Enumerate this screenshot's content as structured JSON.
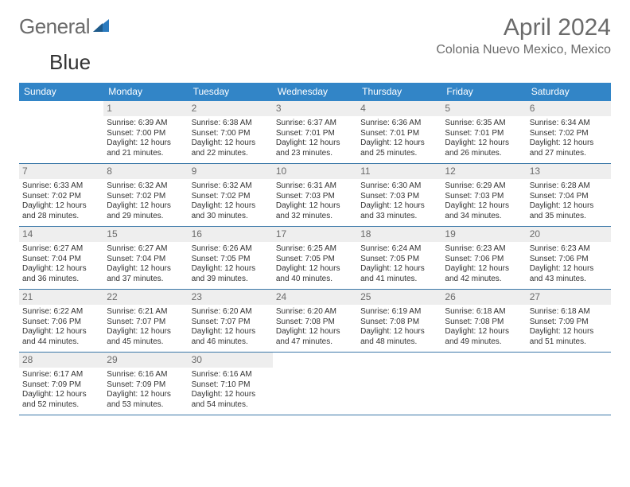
{
  "logo": {
    "text1": "General",
    "text2": "Blue",
    "icon_color": "#2b7bbf"
  },
  "title": {
    "month": "April 2024",
    "location": "Colonia Nuevo Mexico, Mexico"
  },
  "colors": {
    "header_bg": "#3285c7",
    "header_text": "#ffffff",
    "daynum_bg": "#eeeeee",
    "daynum_text": "#6b6b6b",
    "border": "#3b78a8",
    "body_text": "#333333"
  },
  "weekdays": [
    "Sunday",
    "Monday",
    "Tuesday",
    "Wednesday",
    "Thursday",
    "Friday",
    "Saturday"
  ],
  "weeks": [
    [
      {
        "empty": true
      },
      {
        "n": "1",
        "sunrise": "Sunrise: 6:39 AM",
        "sunset": "Sunset: 7:00 PM",
        "daylight": "Daylight: 12 hours and 21 minutes."
      },
      {
        "n": "2",
        "sunrise": "Sunrise: 6:38 AM",
        "sunset": "Sunset: 7:00 PM",
        "daylight": "Daylight: 12 hours and 22 minutes."
      },
      {
        "n": "3",
        "sunrise": "Sunrise: 6:37 AM",
        "sunset": "Sunset: 7:01 PM",
        "daylight": "Daylight: 12 hours and 23 minutes."
      },
      {
        "n": "4",
        "sunrise": "Sunrise: 6:36 AM",
        "sunset": "Sunset: 7:01 PM",
        "daylight": "Daylight: 12 hours and 25 minutes."
      },
      {
        "n": "5",
        "sunrise": "Sunrise: 6:35 AM",
        "sunset": "Sunset: 7:01 PM",
        "daylight": "Daylight: 12 hours and 26 minutes."
      },
      {
        "n": "6",
        "sunrise": "Sunrise: 6:34 AM",
        "sunset": "Sunset: 7:02 PM",
        "daylight": "Daylight: 12 hours and 27 minutes."
      }
    ],
    [
      {
        "n": "7",
        "sunrise": "Sunrise: 6:33 AM",
        "sunset": "Sunset: 7:02 PM",
        "daylight": "Daylight: 12 hours and 28 minutes."
      },
      {
        "n": "8",
        "sunrise": "Sunrise: 6:32 AM",
        "sunset": "Sunset: 7:02 PM",
        "daylight": "Daylight: 12 hours and 29 minutes."
      },
      {
        "n": "9",
        "sunrise": "Sunrise: 6:32 AM",
        "sunset": "Sunset: 7:02 PM",
        "daylight": "Daylight: 12 hours and 30 minutes."
      },
      {
        "n": "10",
        "sunrise": "Sunrise: 6:31 AM",
        "sunset": "Sunset: 7:03 PM",
        "daylight": "Daylight: 12 hours and 32 minutes."
      },
      {
        "n": "11",
        "sunrise": "Sunrise: 6:30 AM",
        "sunset": "Sunset: 7:03 PM",
        "daylight": "Daylight: 12 hours and 33 minutes."
      },
      {
        "n": "12",
        "sunrise": "Sunrise: 6:29 AM",
        "sunset": "Sunset: 7:03 PM",
        "daylight": "Daylight: 12 hours and 34 minutes."
      },
      {
        "n": "13",
        "sunrise": "Sunrise: 6:28 AM",
        "sunset": "Sunset: 7:04 PM",
        "daylight": "Daylight: 12 hours and 35 minutes."
      }
    ],
    [
      {
        "n": "14",
        "sunrise": "Sunrise: 6:27 AM",
        "sunset": "Sunset: 7:04 PM",
        "daylight": "Daylight: 12 hours and 36 minutes."
      },
      {
        "n": "15",
        "sunrise": "Sunrise: 6:27 AM",
        "sunset": "Sunset: 7:04 PM",
        "daylight": "Daylight: 12 hours and 37 minutes."
      },
      {
        "n": "16",
        "sunrise": "Sunrise: 6:26 AM",
        "sunset": "Sunset: 7:05 PM",
        "daylight": "Daylight: 12 hours and 39 minutes."
      },
      {
        "n": "17",
        "sunrise": "Sunrise: 6:25 AM",
        "sunset": "Sunset: 7:05 PM",
        "daylight": "Daylight: 12 hours and 40 minutes."
      },
      {
        "n": "18",
        "sunrise": "Sunrise: 6:24 AM",
        "sunset": "Sunset: 7:05 PM",
        "daylight": "Daylight: 12 hours and 41 minutes."
      },
      {
        "n": "19",
        "sunrise": "Sunrise: 6:23 AM",
        "sunset": "Sunset: 7:06 PM",
        "daylight": "Daylight: 12 hours and 42 minutes."
      },
      {
        "n": "20",
        "sunrise": "Sunrise: 6:23 AM",
        "sunset": "Sunset: 7:06 PM",
        "daylight": "Daylight: 12 hours and 43 minutes."
      }
    ],
    [
      {
        "n": "21",
        "sunrise": "Sunrise: 6:22 AM",
        "sunset": "Sunset: 7:06 PM",
        "daylight": "Daylight: 12 hours and 44 minutes."
      },
      {
        "n": "22",
        "sunrise": "Sunrise: 6:21 AM",
        "sunset": "Sunset: 7:07 PM",
        "daylight": "Daylight: 12 hours and 45 minutes."
      },
      {
        "n": "23",
        "sunrise": "Sunrise: 6:20 AM",
        "sunset": "Sunset: 7:07 PM",
        "daylight": "Daylight: 12 hours and 46 minutes."
      },
      {
        "n": "24",
        "sunrise": "Sunrise: 6:20 AM",
        "sunset": "Sunset: 7:08 PM",
        "daylight": "Daylight: 12 hours and 47 minutes."
      },
      {
        "n": "25",
        "sunrise": "Sunrise: 6:19 AM",
        "sunset": "Sunset: 7:08 PM",
        "daylight": "Daylight: 12 hours and 48 minutes."
      },
      {
        "n": "26",
        "sunrise": "Sunrise: 6:18 AM",
        "sunset": "Sunset: 7:08 PM",
        "daylight": "Daylight: 12 hours and 49 minutes."
      },
      {
        "n": "27",
        "sunrise": "Sunrise: 6:18 AM",
        "sunset": "Sunset: 7:09 PM",
        "daylight": "Daylight: 12 hours and 51 minutes."
      }
    ],
    [
      {
        "n": "28",
        "sunrise": "Sunrise: 6:17 AM",
        "sunset": "Sunset: 7:09 PM",
        "daylight": "Daylight: 12 hours and 52 minutes."
      },
      {
        "n": "29",
        "sunrise": "Sunrise: 6:16 AM",
        "sunset": "Sunset: 7:09 PM",
        "daylight": "Daylight: 12 hours and 53 minutes."
      },
      {
        "n": "30",
        "sunrise": "Sunrise: 6:16 AM",
        "sunset": "Sunset: 7:10 PM",
        "daylight": "Daylight: 12 hours and 54 minutes."
      },
      {
        "empty": true
      },
      {
        "empty": true
      },
      {
        "empty": true
      },
      {
        "empty": true
      }
    ]
  ]
}
